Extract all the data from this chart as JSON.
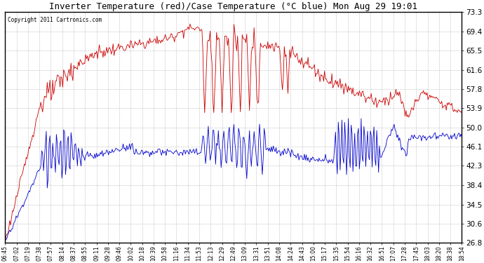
{
  "title": "Inverter Temperature (red)/Case Temperature (°C blue) Mon Aug 29 19:01",
  "copyright": "Copyright 2011 Cartronics.com",
  "yticks": [
    26.8,
    30.6,
    34.5,
    38.4,
    42.3,
    46.1,
    50.0,
    53.9,
    57.8,
    61.6,
    65.5,
    69.4,
    73.3
  ],
  "ymin": 26.8,
  "ymax": 73.3,
  "bg_color": "#ffffff",
  "grid_color": "#aaaaaa",
  "red_color": "#cc0000",
  "blue_color": "#0000cc",
  "x_labels": [
    "06:45",
    "07:02",
    "07:19",
    "07:38",
    "07:57",
    "08:14",
    "08:37",
    "08:55",
    "09:11",
    "09:28",
    "09:46",
    "10:02",
    "10:18",
    "10:39",
    "10:58",
    "11:16",
    "11:34",
    "11:53",
    "12:13",
    "12:29",
    "12:49",
    "13:09",
    "13:31",
    "13:51",
    "14:08",
    "14:24",
    "14:43",
    "15:00",
    "15:17",
    "15:35",
    "15:54",
    "16:16",
    "16:32",
    "16:51",
    "17:07",
    "17:28",
    "17:45",
    "18:03",
    "18:20",
    "18:38",
    "18:54"
  ],
  "figwidth": 6.9,
  "figheight": 3.75,
  "dpi": 100
}
